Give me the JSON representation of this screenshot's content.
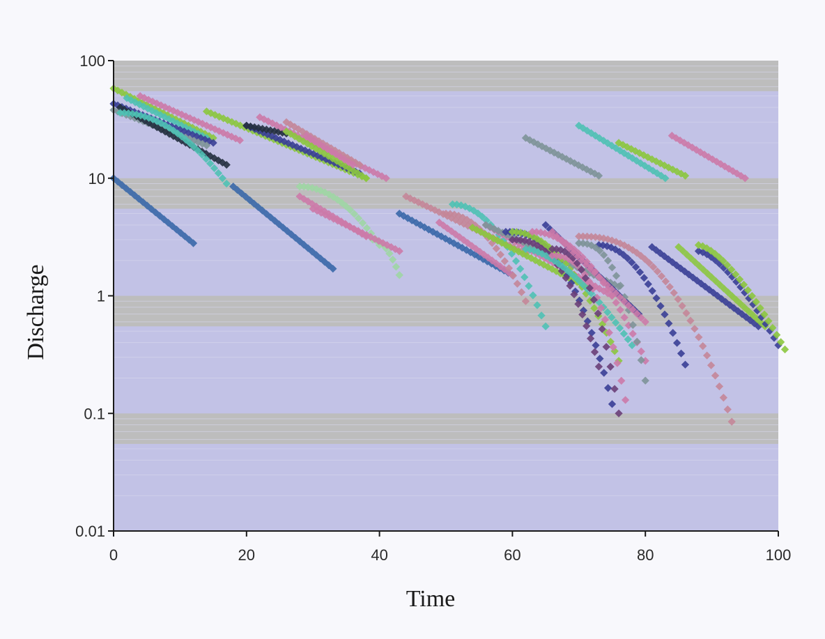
{
  "chart_data": {
    "type": "scatter",
    "title": "",
    "xlabel": "Time",
    "ylabel": "Discharge",
    "xlim": [
      0,
      100
    ],
    "ylim": [
      0.01,
      100
    ],
    "y_scale": "log",
    "x_ticks": [
      "0",
      "20",
      "40",
      "60",
      "80",
      "100"
    ],
    "y_ticks": [
      "100",
      "10",
      "1",
      "0.1",
      "0.01"
    ],
    "grid": "horizontal bands",
    "legend": "none",
    "colors": {
      "band_gray": "#bdbdbd",
      "band_blue": "#c2c2e6",
      "navy": "#3a3f96",
      "steelblue": "#3a68a8",
      "green": "#8cc63f",
      "teal": "#4fc1b4",
      "pink": "#cc7aa8",
      "rose": "#c48698",
      "gray": "#7e9498",
      "black": "#253040",
      "purple": "#6a3f78",
      "mint": "#9fd6a4"
    },
    "series": [
      {
        "color": "green",
        "x0": 0,
        "y0": 58,
        "x1": 15,
        "y1": 22
      },
      {
        "color": "teal",
        "x0": 2,
        "y0": 48,
        "x1": 14,
        "y1": 22
      },
      {
        "color": "pink",
        "x0": 4,
        "y0": 50,
        "x1": 19,
        "y1": 21
      },
      {
        "color": "navy",
        "x0": 0,
        "y0": 43,
        "x1": 15,
        "y1": 20
      },
      {
        "color": "gray",
        "x0": 0,
        "y0": 38,
        "x1": 14,
        "y1": 19
      },
      {
        "color": "black",
        "x0": 1,
        "y0": 40,
        "x1": 17,
        "y1": 13
      },
      {
        "color": "teal",
        "x0": 1,
        "y0": 36,
        "x1": 17,
        "y1": 9,
        "curve": 2
      },
      {
        "color": "steelblue",
        "x0": 0,
        "y0": 10,
        "x1": 12,
        "y1": 2.8
      },
      {
        "color": "green",
        "x0": 14,
        "y0": 37,
        "x1": 38,
        "y1": 10
      },
      {
        "color": "navy",
        "x0": 20,
        "y0": 28,
        "x1": 37,
        "y1": 11
      },
      {
        "color": "black",
        "x0": 20,
        "y0": 28,
        "x1": 26,
        "y1": 24
      },
      {
        "color": "pink",
        "x0": 22,
        "y0": 33,
        "x1": 41,
        "y1": 10
      },
      {
        "color": "rose",
        "x0": 26,
        "y0": 30,
        "x1": 37,
        "y1": 13
      },
      {
        "color": "green",
        "x0": 26,
        "y0": 25,
        "x1": 38,
        "y1": 10
      },
      {
        "color": "pink",
        "x0": 29,
        "y0": 23,
        "x1": 36,
        "y1": 13
      },
      {
        "color": "steelblue",
        "x0": 18,
        "y0": 8.5,
        "x1": 33,
        "y1": 1.7
      },
      {
        "color": "mint",
        "x0": 28,
        "y0": 8.5,
        "x1": 40,
        "y1": 2.7,
        "curve": 2
      },
      {
        "color": "mint",
        "x0": 39,
        "y0": 3,
        "x1": 43,
        "y1": 1.5,
        "curve": 2
      },
      {
        "color": "pink",
        "x0": 28,
        "y0": 7,
        "x1": 38,
        "y1": 3.2
      },
      {
        "color": "pink",
        "x0": 30,
        "y0": 5.5,
        "x1": 43,
        "y1": 2.4
      },
      {
        "color": "steelblue",
        "x0": 43,
        "y0": 5,
        "x1": 60,
        "y1": 1.5
      },
      {
        "color": "rose",
        "x0": 44,
        "y0": 7,
        "x1": 62,
        "y1": 2.3
      },
      {
        "color": "pink",
        "x0": 49,
        "y0": 4.2,
        "x1": 60,
        "y1": 1.5
      },
      {
        "color": "rose",
        "x0": 50,
        "y0": 5,
        "x1": 62,
        "y1": 0.9,
        "curve": 2
      },
      {
        "color": "teal",
        "x0": 51,
        "y0": 6,
        "x1": 65,
        "y1": 0.55,
        "curve": 2
      },
      {
        "color": "green",
        "x0": 54,
        "y0": 3.8,
        "x1": 71,
        "y1": 1.2
      },
      {
        "color": "pink",
        "x0": 56,
        "y0": 4,
        "x1": 75,
        "y1": 1.0
      },
      {
        "color": "gray",
        "x0": 56,
        "y0": 4,
        "x1": 76,
        "y1": 1.2
      },
      {
        "color": "navy",
        "x0": 59,
        "y0": 3.5,
        "x1": 75,
        "y1": 0.12,
        "curve": 2.5
      },
      {
        "color": "purple",
        "x0": 60,
        "y0": 3,
        "x1": 73,
        "y1": 0.25,
        "curve": 2.5
      },
      {
        "color": "green",
        "x0": 60,
        "y0": 3.5,
        "x1": 76,
        "y1": 0.28,
        "curve": 2
      },
      {
        "color": "teal",
        "x0": 62,
        "y0": 2.5,
        "x1": 78,
        "y1": 0.38,
        "curve": 1.6
      },
      {
        "color": "navy",
        "x0": 65,
        "y0": 4,
        "x1": 79,
        "y1": 0.7
      },
      {
        "color": "pink",
        "x0": 63,
        "y0": 3.5,
        "x1": 80,
        "y1": 0.28,
        "curve": 2
      },
      {
        "color": "rose",
        "x0": 70,
        "y0": 3.2,
        "x1": 93,
        "y1": 0.085,
        "curve": 2.5
      },
      {
        "color": "navy",
        "x0": 73,
        "y0": 2.7,
        "x1": 86,
        "y1": 0.26,
        "curve": 2
      },
      {
        "color": "gray",
        "x0": 70,
        "y0": 2.8,
        "x1": 80,
        "y1": 0.19,
        "curve": 2.5
      },
      {
        "color": "pink",
        "x0": 66,
        "y0": 2.2,
        "x1": 77,
        "y1": 0.13,
        "curve": 2.5
      },
      {
        "color": "purple",
        "x0": 66,
        "y0": 2.5,
        "x1": 76,
        "y1": 0.1,
        "curve": 2.5
      },
      {
        "color": "pink",
        "x0": 66,
        "y0": 3.5,
        "x1": 80,
        "y1": 0.6
      },
      {
        "color": "navy",
        "x0": 81,
        "y0": 2.6,
        "x1": 97,
        "y1": 0.55
      },
      {
        "color": "green",
        "x0": 85,
        "y0": 2.6,
        "x1": 98,
        "y1": 0.55
      },
      {
        "color": "navy",
        "x0": 88,
        "y0": 2.4,
        "x1": 100,
        "y1": 0.38,
        "curve": 1.5
      },
      {
        "color": "green",
        "x0": 88,
        "y0": 2.7,
        "x1": 101,
        "y1": 0.35,
        "curve": 1.5
      },
      {
        "color": "gray",
        "x0": 62,
        "y0": 22,
        "x1": 73,
        "y1": 10.5
      },
      {
        "color": "teal",
        "x0": 70,
        "y0": 28,
        "x1": 83,
        "y1": 10
      },
      {
        "color": "green",
        "x0": 76,
        "y0": 20,
        "x1": 86,
        "y1": 10.5
      },
      {
        "color": "pink",
        "x0": 84,
        "y0": 23,
        "x1": 95,
        "y1": 10
      }
    ]
  }
}
